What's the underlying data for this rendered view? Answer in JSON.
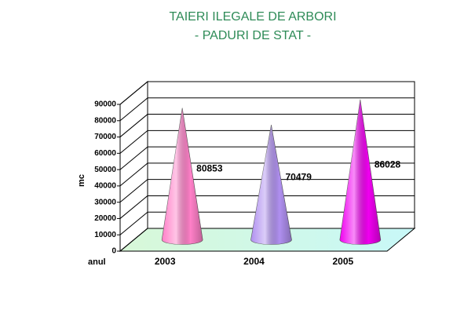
{
  "chart_data": {
    "type": "cone",
    "title": "TAIERI ILEGALE DE ARBORI",
    "subtitle": "- PADURI DE STAT -",
    "x_label": "anul",
    "y_label": "mc",
    "categories": [
      "2003",
      "2004",
      "2005"
    ],
    "values": [
      80853,
      70479,
      86028
    ],
    "colors": [
      "#ff80c8",
      "#b090f0",
      "#f000f0"
    ],
    "ylim": [
      0,
      90000
    ],
    "yticks": [
      0,
      10000,
      20000,
      30000,
      40000,
      50000,
      60000,
      70000,
      80000,
      90000
    ],
    "grid": true
  }
}
